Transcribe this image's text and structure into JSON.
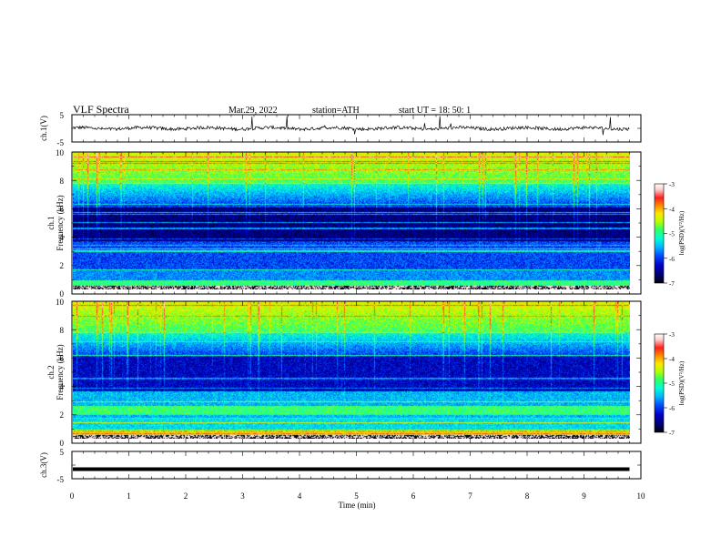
{
  "header": {
    "title": "VLF  Spectra",
    "date": "Mar.29, 2022",
    "station": "station=ATH",
    "start": "start  UT  =    18: 50: 1"
  },
  "chart_data": [
    {
      "type": "line",
      "panel": "ch1-waveform",
      "ylabel": "ch.1(V)",
      "ytick_labels": [
        "5",
        "-5"
      ],
      "ylim": [
        -5,
        5
      ],
      "xlim": [
        0,
        10
      ],
      "trace_extent_min": 9.8,
      "baseline_v": 0
    },
    {
      "type": "heatmap",
      "panel": "ch1-spectrogram",
      "ylabel": "ch.1\nFrequency  (kHz)",
      "ytick_labels": [
        "0",
        "2",
        "4",
        "6",
        "8",
        "10"
      ],
      "ylim": [
        0,
        10
      ],
      "xlim": [
        0,
        10
      ],
      "extent_min": 9.8,
      "colorbar": {
        "label": "log(PSD)(V²/Hz)",
        "ticks": [
          -3,
          -4,
          -5,
          -6,
          -7
        ],
        "tick_labels": [
          "-3",
          "-4",
          "-5",
          "-6",
          "-7"
        ],
        "range": [
          -7,
          -3
        ]
      }
    },
    {
      "type": "heatmap",
      "panel": "ch2-spectrogram",
      "ylabel": "ch.2\nFrequency  (kHz)",
      "ytick_labels": [
        "0",
        "2",
        "4",
        "6",
        "8",
        "10"
      ],
      "ylim": [
        0,
        10
      ],
      "xlim": [
        0,
        10
      ],
      "extent_min": 9.8,
      "colorbar": {
        "label": "log(PSD)(V²/Hz)",
        "ticks": [
          -3,
          -4,
          -5,
          -6,
          -7
        ],
        "tick_labels": [
          "-3",
          "-4",
          "-5",
          "-6",
          "-7"
        ],
        "range": [
          -7,
          -3
        ]
      }
    },
    {
      "type": "line",
      "panel": "ch3-waveform",
      "ylabel": "ch.3(V)",
      "ytick_labels": [
        "5",
        "-5"
      ],
      "ylim": [
        -5,
        5
      ],
      "xlim": [
        0,
        10
      ],
      "trace_extent_min": 9.8,
      "baseline_v": -1.5,
      "xlabel": "Time  (min)",
      "xtick_labels": [
        "0",
        "1",
        "2",
        "3",
        "4",
        "5",
        "6",
        "7",
        "8",
        "9",
        "10"
      ]
    }
  ],
  "colormap": [
    "#000000",
    "#00006e",
    "#0000c8",
    "#0050ff",
    "#00b4ff",
    "#00ffd2",
    "#32ff64",
    "#b4ff00",
    "#ffe600",
    "#ff8c00",
    "#ff1e1e",
    "#ffc8c8",
    "#ffffff"
  ]
}
